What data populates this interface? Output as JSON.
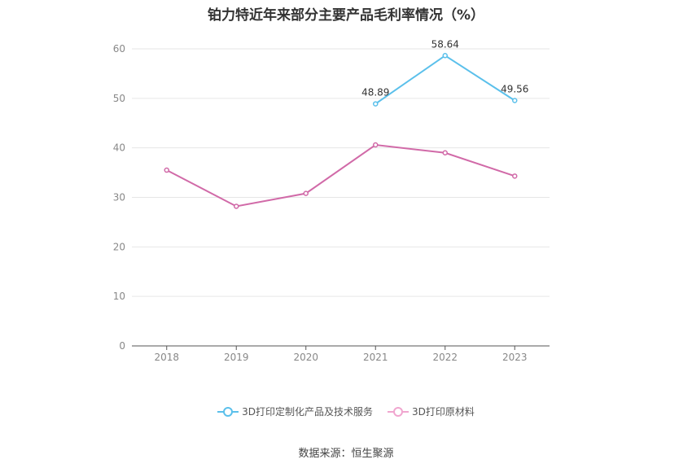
{
  "chart_data": {
    "type": "line",
    "title": "铂力特近年来部分主要产品毛利率情况（%）",
    "categories": [
      "2018",
      "2019",
      "2020",
      "2021",
      "2022",
      "2023"
    ],
    "series": [
      {
        "name": "3D打印定制化产品及技术服务",
        "color": "#5bc0eb",
        "values": [
          null,
          null,
          null,
          48.89,
          58.64,
          49.56
        ],
        "labels": [
          "",
          "",
          "",
          "48.89",
          "58.64",
          "49.56"
        ]
      },
      {
        "name": "3D打印原材料",
        "color": "#d16aa8",
        "values": [
          35.5,
          28.2,
          30.8,
          40.6,
          39.0,
          34.3
        ],
        "labels": [
          "",
          "",
          "",
          "",
          "",
          ""
        ]
      }
    ],
    "ylim": [
      0,
      60
    ],
    "yticks": [
      "0",
      "10",
      "20",
      "30",
      "40",
      "50",
      "60"
    ],
    "xlabel": "",
    "ylabel": "",
    "grid": true,
    "legend_position": "bottom"
  },
  "footer": {
    "source": "数据来源：恒生聚源"
  }
}
